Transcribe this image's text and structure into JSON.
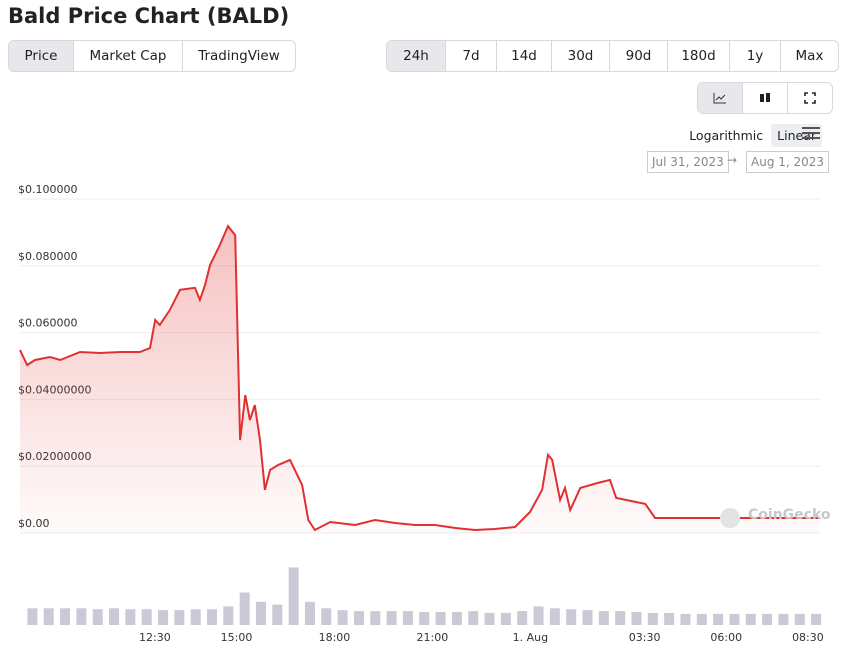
{
  "header": {
    "title": "Bald Price Chart (BALD)"
  },
  "tabs": [
    "Price",
    "Market Cap",
    "TradingView"
  ],
  "active_tab": 0,
  "ranges": [
    "24h",
    "7d",
    "14d",
    "30d",
    "90d",
    "180d",
    "1y",
    "Max"
  ],
  "active_range": 0,
  "scale_options": [
    "Logarithmic",
    "Linear"
  ],
  "active_scale": 1,
  "date_from": "Jul 31, 2023",
  "date_separator": "→",
  "date_to": "Aug 1, 2023",
  "watermark": "CoinGecko",
  "chart_data": [
    {
      "type": "area",
      "color": "#e03131",
      "x": [
        8.37,
        8.59,
        8.83,
        9.29,
        9.6,
        10.21,
        10.82,
        11.44,
        12.04,
        12.35,
        12.51,
        12.65,
        12.96,
        13.27,
        13.73,
        13.88,
        14.04,
        14.19,
        14.49,
        14.74,
        14.96,
        15.11,
        15.27,
        15.41,
        15.56,
        15.72,
        15.87,
        16.03,
        16.28,
        16.64,
        17.01,
        17.2,
        17.4,
        17.87,
        18.63,
        19.24,
        19.86,
        20.47,
        21.08,
        21.7,
        22.3,
        22.91,
        23.53,
        23.99,
        24.36,
        24.54,
        24.67,
        24.91,
        25.06,
        25.22,
        25.53,
        26.07,
        26.44,
        26.63,
        27.21,
        27.52,
        27.82,
        32.87
      ],
      "values": [
        0.0548,
        0.0503,
        0.0518,
        0.0527,
        0.0518,
        0.0542,
        0.0539,
        0.0542,
        0.0542,
        0.0554,
        0.0638,
        0.0623,
        0.0668,
        0.0728,
        0.0734,
        0.0698,
        0.0743,
        0.0802,
        0.0862,
        0.0919,
        0.0892,
        0.0278,
        0.0413,
        0.0338,
        0.0383,
        0.0278,
        0.0129,
        0.0189,
        0.0204,
        0.0219,
        0.0144,
        0.0039,
        0.0009,
        0.0033,
        0.0024,
        0.0039,
        0.003,
        0.0024,
        0.0024,
        0.0015,
        0.0009,
        0.0012,
        0.0018,
        0.0063,
        0.0129,
        0.0234,
        0.0219,
        0.0099,
        0.0135,
        0.0069,
        0.0135,
        0.015,
        0.0159,
        0.0105,
        0.0093,
        0.0087,
        0.0045,
        0.0045
      ],
      "xlim": [
        8.37,
        32.87
      ],
      "xticks": [
        {
          "value": 12.5,
          "label": "12:30"
        },
        {
          "value": 15,
          "label": "15:00"
        },
        {
          "value": 18,
          "label": "18:00"
        },
        {
          "value": 21,
          "label": "21:00"
        },
        {
          "value": 24,
          "label": "1. Aug"
        },
        {
          "value": 27.5,
          "label": "03:30"
        },
        {
          "value": 30,
          "label": "06:00"
        },
        {
          "value": 32.5,
          "label": "08:30"
        }
      ],
      "ylim": [
        0,
        0.1
      ],
      "yticks": [
        {
          "value": 0,
          "label": "$0.00"
        },
        {
          "value": 0.02,
          "label": "$0.02000000"
        },
        {
          "value": 0.04,
          "label": "$0.04000000"
        },
        {
          "value": 0.06,
          "label": "$0.060000"
        },
        {
          "value": 0.08,
          "label": "$0.080000"
        },
        {
          "value": 0.1,
          "label": "$0.100000"
        }
      ],
      "grid": true
    },
    {
      "type": "bar",
      "color": "#c9cad6",
      "x": [
        8.75,
        9.25,
        9.75,
        10.25,
        10.75,
        11.25,
        11.75,
        12.25,
        12.75,
        13.25,
        13.75,
        14.25,
        14.75,
        15.25,
        15.75,
        16.25,
        16.75,
        17.25,
        17.75,
        18.25,
        18.75,
        19.25,
        19.75,
        20.25,
        20.75,
        21.25,
        21.75,
        22.25,
        22.75,
        23.25,
        23.75,
        24.25,
        24.75,
        25.25,
        25.75,
        26.25,
        26.75,
        27.25,
        27.75,
        28.25,
        28.75,
        29.25,
        29.75,
        30.25,
        30.75,
        31.25,
        31.75,
        32.25,
        32.75
      ],
      "values": [
        18,
        18,
        18,
        18,
        17,
        18,
        17,
        17,
        16,
        16,
        17,
        17,
        20,
        35,
        25,
        22,
        62,
        25,
        18,
        16,
        15,
        15,
        15,
        15,
        14,
        14,
        14,
        15,
        13,
        13,
        15,
        20,
        18,
        17,
        16,
        15,
        15,
        14,
        13,
        13,
        12,
        12,
        12,
        12,
        12,
        12,
        12,
        12,
        12
      ],
      "xlim": [
        8.37,
        32.87
      ],
      "ylim": [
        0,
        70
      ]
    }
  ]
}
